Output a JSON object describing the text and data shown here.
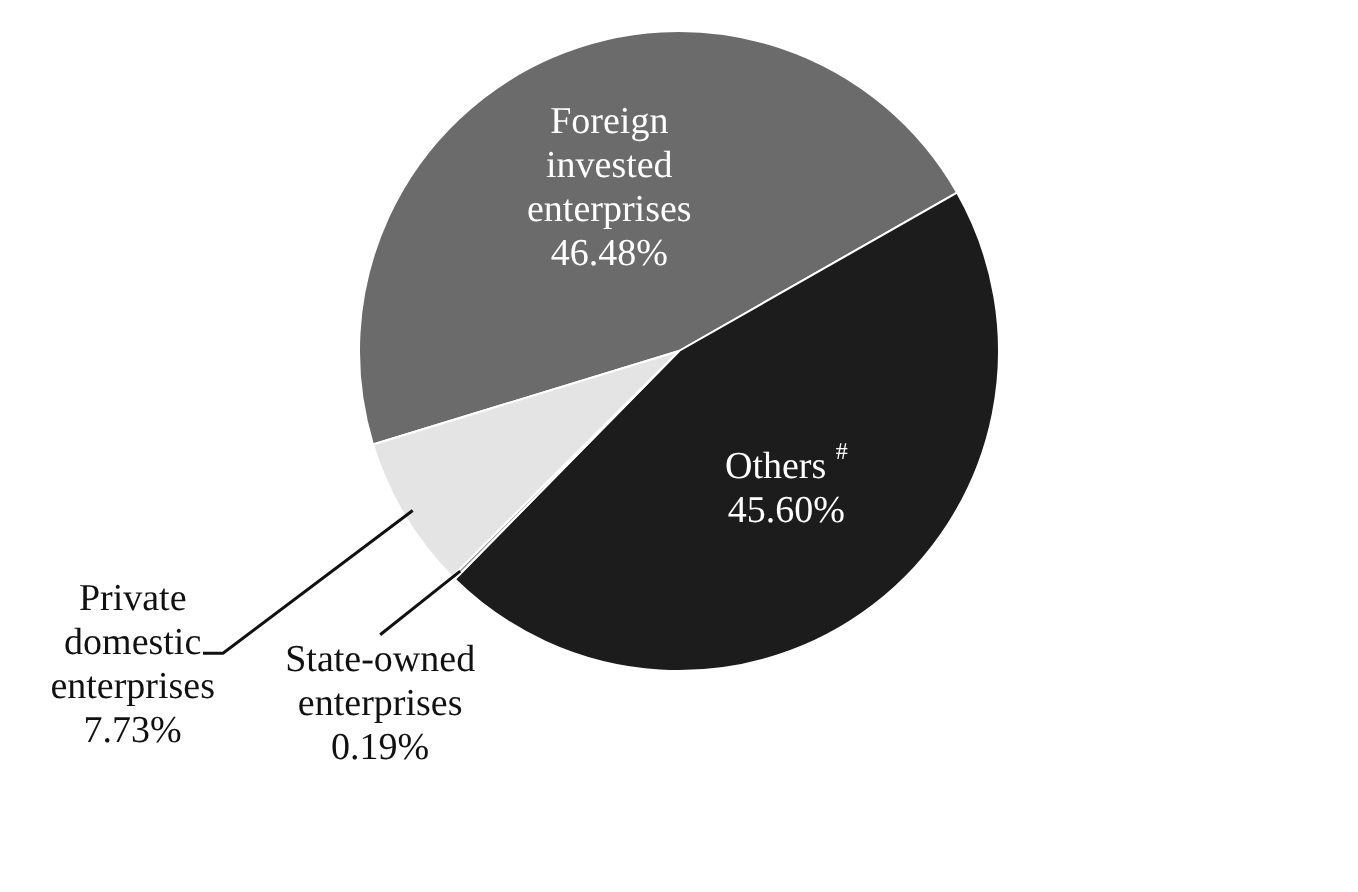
{
  "chart_data": {
    "type": "pie",
    "categories": [
      "Foreign invested enterprises",
      "Others $^{#}$",
      "State-owned enterprises",
      "Private domestic enterprises"
    ],
    "values": [
      46.48,
      45.6,
      0.19,
      7.73
    ],
    "colors": [
      "#6b6b6b",
      "#1c1c1c",
      "#9a9a9a",
      "#e4e4e4"
    ],
    "value_labels": [
      "46.48%",
      "45.60%",
      "0.19%",
      "7.73%"
    ],
    "legend": false
  }
}
